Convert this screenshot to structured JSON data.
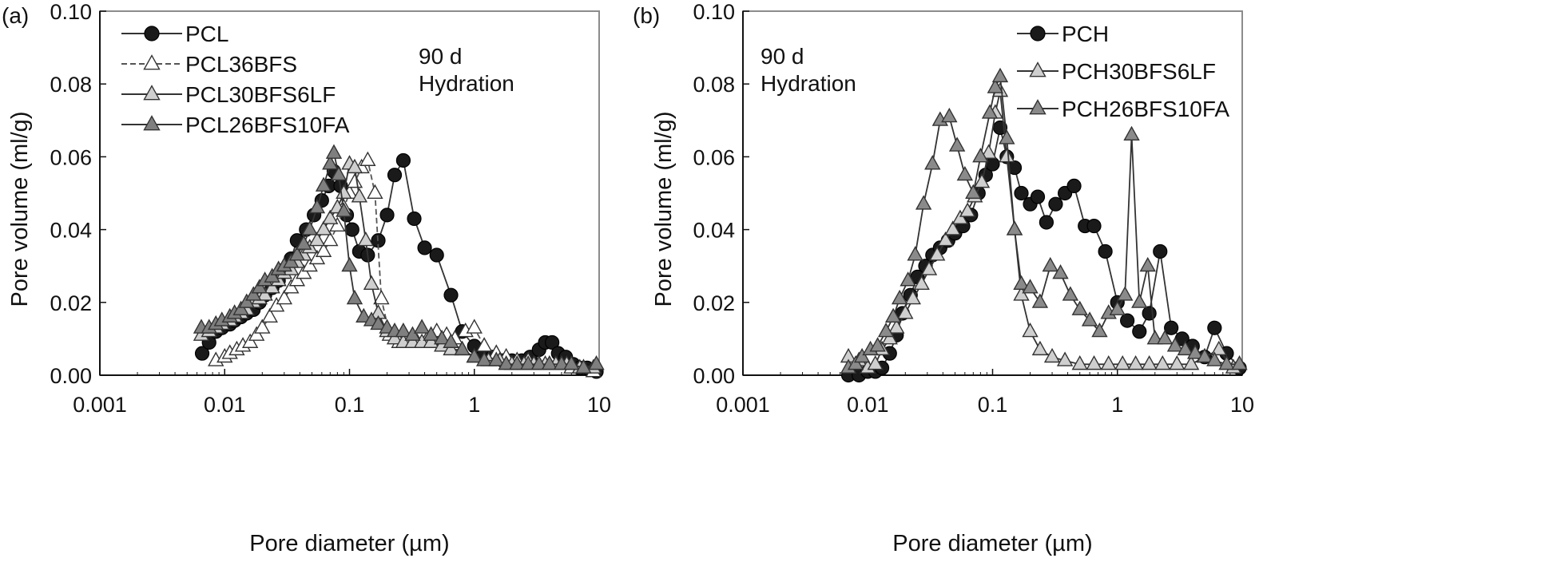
{
  "chart_data": [
    {
      "panel_label": "(a)",
      "type": "line",
      "xlabel": "Pore diameter (µm)",
      "ylabel": "Pore volume (ml/g)",
      "xscale": "log",
      "xlim": [
        0.001,
        10
      ],
      "ylim": [
        0,
        0.1
      ],
      "xticks": [
        "0.001",
        "0.01",
        "0.1",
        "1",
        "10"
      ],
      "yticks": [
        "0.00",
        "0.02",
        "0.04",
        "0.06",
        "0.08",
        "0.10"
      ],
      "annotation": [
        "90 d",
        "Hydration"
      ],
      "legend_position": "top-left",
      "grid": false,
      "series": [
        {
          "name": "PCL",
          "marker": "circle",
          "fill": "#1a1a1a",
          "line": "solid",
          "x": [
            0.0066,
            0.0075,
            0.0085,
            0.0095,
            0.011,
            0.012,
            0.0135,
            0.015,
            0.017,
            0.019,
            0.021,
            0.024,
            0.027,
            0.03,
            0.034,
            0.038,
            0.045,
            0.052,
            0.06,
            0.068,
            0.075,
            0.085,
            0.095,
            0.105,
            0.12,
            0.14,
            0.17,
            0.2,
            0.23,
            0.27,
            0.33,
            0.4,
            0.5,
            0.65,
            0.8,
            1.0,
            1.2,
            1.4,
            1.7,
            2.0,
            2.4,
            2.8,
            3.3,
            3.7,
            4.2,
            4.7,
            5.4,
            6.2,
            7.0,
            8.0,
            9.5
          ],
          "y": [
            0.006,
            0.009,
            0.012,
            0.013,
            0.014,
            0.015,
            0.016,
            0.017,
            0.018,
            0.02,
            0.022,
            0.024,
            0.026,
            0.029,
            0.032,
            0.037,
            0.04,
            0.044,
            0.048,
            0.052,
            0.056,
            0.052,
            0.044,
            0.04,
            0.034,
            0.033,
            0.037,
            0.044,
            0.055,
            0.059,
            0.043,
            0.035,
            0.033,
            0.022,
            0.012,
            0.008,
            0.006,
            0.005,
            0.004,
            0.004,
            0.004,
            0.005,
            0.007,
            0.009,
            0.009,
            0.006,
            0.005,
            0.003,
            0.002,
            0.002,
            0.001
          ]
        },
        {
          "name": "PCL36BFS",
          "marker": "triangle",
          "fill": "#ffffff",
          "line": "dashed",
          "x": [
            0.0085,
            0.01,
            0.011,
            0.0125,
            0.014,
            0.016,
            0.018,
            0.02,
            0.023,
            0.026,
            0.03,
            0.034,
            0.038,
            0.043,
            0.048,
            0.055,
            0.062,
            0.07,
            0.08,
            0.09,
            0.1,
            0.11,
            0.125,
            0.14,
            0.16,
            0.18,
            0.21,
            0.25,
            0.3,
            0.35,
            0.42,
            0.5,
            0.6,
            0.7,
            0.85,
            1.0,
            1.2,
            1.5,
            1.8,
            2.2,
            2.7,
            3.3,
            4.0,
            5.0,
            6.0,
            7.5,
            9.0
          ],
          "y": [
            0.004,
            0.005,
            0.006,
            0.007,
            0.008,
            0.009,
            0.011,
            0.013,
            0.016,
            0.019,
            0.021,
            0.024,
            0.026,
            0.028,
            0.03,
            0.032,
            0.034,
            0.037,
            0.041,
            0.046,
            0.05,
            0.053,
            0.057,
            0.059,
            0.05,
            0.021,
            0.011,
            0.009,
            0.009,
            0.009,
            0.01,
            0.012,
            0.011,
            0.01,
            0.012,
            0.013,
            0.008,
            0.006,
            0.005,
            0.004,
            0.004,
            0.003,
            0.003,
            0.003,
            0.002,
            0.002,
            0.001
          ]
        },
        {
          "name": "PCL30BFS6LF",
          "marker": "triangle",
          "fill": "#cfcfcf",
          "line": "solid",
          "x": [
            0.0065,
            0.0075,
            0.0085,
            0.0095,
            0.011,
            0.012,
            0.0135,
            0.015,
            0.017,
            0.019,
            0.021,
            0.024,
            0.027,
            0.03,
            0.034,
            0.038,
            0.043,
            0.048,
            0.055,
            0.062,
            0.07,
            0.08,
            0.09,
            0.1,
            0.11,
            0.12,
            0.135,
            0.15,
            0.17,
            0.2,
            0.23,
            0.27,
            0.32,
            0.38,
            0.45,
            0.55,
            0.65,
            0.8,
            1.0,
            1.3,
            1.6,
            2.0,
            2.5,
            3.0,
            3.7,
            4.5,
            5.5,
            7.0,
            9.0
          ],
          "y": [
            0.011,
            0.012,
            0.013,
            0.014,
            0.015,
            0.016,
            0.017,
            0.018,
            0.02,
            0.021,
            0.022,
            0.024,
            0.026,
            0.028,
            0.029,
            0.031,
            0.033,
            0.035,
            0.037,
            0.04,
            0.043,
            0.046,
            0.05,
            0.058,
            0.057,
            0.049,
            0.037,
            0.025,
            0.017,
            0.012,
            0.01,
            0.009,
            0.009,
            0.009,
            0.009,
            0.008,
            0.007,
            0.007,
            0.005,
            0.004,
            0.004,
            0.003,
            0.003,
            0.003,
            0.003,
            0.003,
            0.003,
            0.002,
            0.002
          ]
        },
        {
          "name": "PCL26BFS10FA",
          "marker": "triangle",
          "fill": "#7f7f7f",
          "line": "solid",
          "x": [
            0.0065,
            0.0075,
            0.0085,
            0.0095,
            0.011,
            0.012,
            0.0135,
            0.015,
            0.017,
            0.019,
            0.021,
            0.024,
            0.027,
            0.03,
            0.034,
            0.038,
            0.043,
            0.048,
            0.055,
            0.062,
            0.07,
            0.075,
            0.082,
            0.09,
            0.1,
            0.11,
            0.13,
            0.15,
            0.17,
            0.2,
            0.23,
            0.27,
            0.32,
            0.38,
            0.45,
            0.55,
            0.65,
            0.8,
            1.0,
            1.2,
            1.5,
            1.8,
            2.2,
            2.7,
            3.3,
            4.0,
            5.0,
            6.0,
            7.5,
            9.5
          ],
          "y": [
            0.013,
            0.013,
            0.014,
            0.015,
            0.016,
            0.017,
            0.018,
            0.02,
            0.022,
            0.024,
            0.026,
            0.027,
            0.029,
            0.03,
            0.031,
            0.033,
            0.036,
            0.04,
            0.046,
            0.052,
            0.058,
            0.061,
            0.055,
            0.045,
            0.03,
            0.021,
            0.016,
            0.015,
            0.014,
            0.013,
            0.012,
            0.012,
            0.011,
            0.013,
            0.011,
            0.01,
            0.009,
            0.007,
            0.005,
            0.004,
            0.004,
            0.003,
            0.003,
            0.003,
            0.003,
            0.003,
            0.003,
            0.003,
            0.002,
            0.003
          ]
        }
      ]
    },
    {
      "panel_label": "(b)",
      "type": "line",
      "xlabel": "Pore diameter (µm)",
      "ylabel": "Pore volume (ml/g)",
      "xscale": "log",
      "xlim": [
        0.001,
        10
      ],
      "ylim": [
        0,
        0.1
      ],
      "xticks": [
        "0.001",
        "0.01",
        "0.1",
        "1",
        "10"
      ],
      "yticks": [
        "0.00",
        "0.02",
        "0.04",
        "0.06",
        "0.08",
        "0.10"
      ],
      "annotation": [
        "90 d",
        "Hydration"
      ],
      "legend_position": "top-right",
      "grid": false,
      "series": [
        {
          "name": "PCH",
          "marker": "circle",
          "fill": "#1a1a1a",
          "line": "solid",
          "x": [
            0.007,
            0.0085,
            0.01,
            0.0115,
            0.013,
            0.015,
            0.017,
            0.019,
            0.022,
            0.025,
            0.029,
            0.033,
            0.038,
            0.044,
            0.05,
            0.058,
            0.067,
            0.077,
            0.088,
            0.1,
            0.115,
            0.13,
            0.15,
            0.17,
            0.2,
            0.23,
            0.27,
            0.32,
            0.38,
            0.45,
            0.55,
            0.65,
            0.8,
            1.0,
            1.2,
            1.5,
            1.8,
            2.2,
            2.7,
            3.3,
            4.0,
            5.0,
            6.0,
            7.5,
            9.5
          ],
          "y": [
            0.0,
            0.0,
            0.001,
            0.001,
            0.002,
            0.006,
            0.011,
            0.017,
            0.022,
            0.027,
            0.03,
            0.033,
            0.035,
            0.037,
            0.039,
            0.041,
            0.044,
            0.05,
            0.055,
            0.058,
            0.068,
            0.06,
            0.057,
            0.05,
            0.047,
            0.049,
            0.042,
            0.047,
            0.05,
            0.052,
            0.041,
            0.041,
            0.034,
            0.02,
            0.015,
            0.012,
            0.017,
            0.034,
            0.013,
            0.01,
            0.008,
            0.005,
            0.013,
            0.006,
            0.002
          ]
        },
        {
          "name": "PCH30BFS6LF",
          "marker": "triangle",
          "fill": "#cfcfcf",
          "line": "solid",
          "x": [
            0.007,
            0.0085,
            0.01,
            0.0115,
            0.013,
            0.015,
            0.017,
            0.02,
            0.023,
            0.027,
            0.031,
            0.036,
            0.042,
            0.048,
            0.055,
            0.063,
            0.072,
            0.082,
            0.093,
            0.105,
            0.115,
            0.13,
            0.15,
            0.17,
            0.2,
            0.24,
            0.3,
            0.38,
            0.5,
            0.65,
            0.85,
            1.1,
            1.4,
            1.8,
            2.3,
            3.0,
            3.9,
            5.0,
            6.5,
            8.5
          ],
          "y": [
            0.005,
            0.004,
            0.002,
            0.003,
            0.007,
            0.01,
            0.013,
            0.017,
            0.021,
            0.025,
            0.029,
            0.033,
            0.037,
            0.04,
            0.043,
            0.045,
            0.049,
            0.053,
            0.061,
            0.072,
            0.078,
            0.06,
            0.04,
            0.022,
            0.012,
            0.007,
            0.005,
            0.004,
            0.003,
            0.003,
            0.003,
            0.003,
            0.003,
            0.003,
            0.003,
            0.003,
            0.003,
            0.005,
            0.007,
            0.002
          ]
        },
        {
          "name": "PCH26BFS10FA",
          "marker": "triangle",
          "fill": "#8a8a8a",
          "line": "solid",
          "x": [
            0.007,
            0.008,
            0.009,
            0.0105,
            0.012,
            0.014,
            0.016,
            0.018,
            0.021,
            0.024,
            0.028,
            0.033,
            0.038,
            0.045,
            0.052,
            0.06,
            0.07,
            0.08,
            0.095,
            0.105,
            0.115,
            0.13,
            0.15,
            0.17,
            0.2,
            0.24,
            0.29,
            0.35,
            0.42,
            0.5,
            0.6,
            0.72,
            0.85,
            1.0,
            1.15,
            1.3,
            1.5,
            1.75,
            2.0,
            2.4,
            2.9,
            3.5,
            4.2,
            5.0,
            6.0,
            7.5,
            9.5
          ],
          "y": [
            0.002,
            0.003,
            0.005,
            0.007,
            0.008,
            0.012,
            0.016,
            0.021,
            0.026,
            0.033,
            0.047,
            0.058,
            0.07,
            0.071,
            0.063,
            0.055,
            0.05,
            0.06,
            0.072,
            0.079,
            0.082,
            0.065,
            0.04,
            0.025,
            0.024,
            0.02,
            0.03,
            0.028,
            0.022,
            0.018,
            0.015,
            0.012,
            0.017,
            0.018,
            0.022,
            0.066,
            0.02,
            0.03,
            0.01,
            0.01,
            0.008,
            0.007,
            0.006,
            0.005,
            0.004,
            0.003,
            0.003
          ]
        }
      ]
    }
  ]
}
